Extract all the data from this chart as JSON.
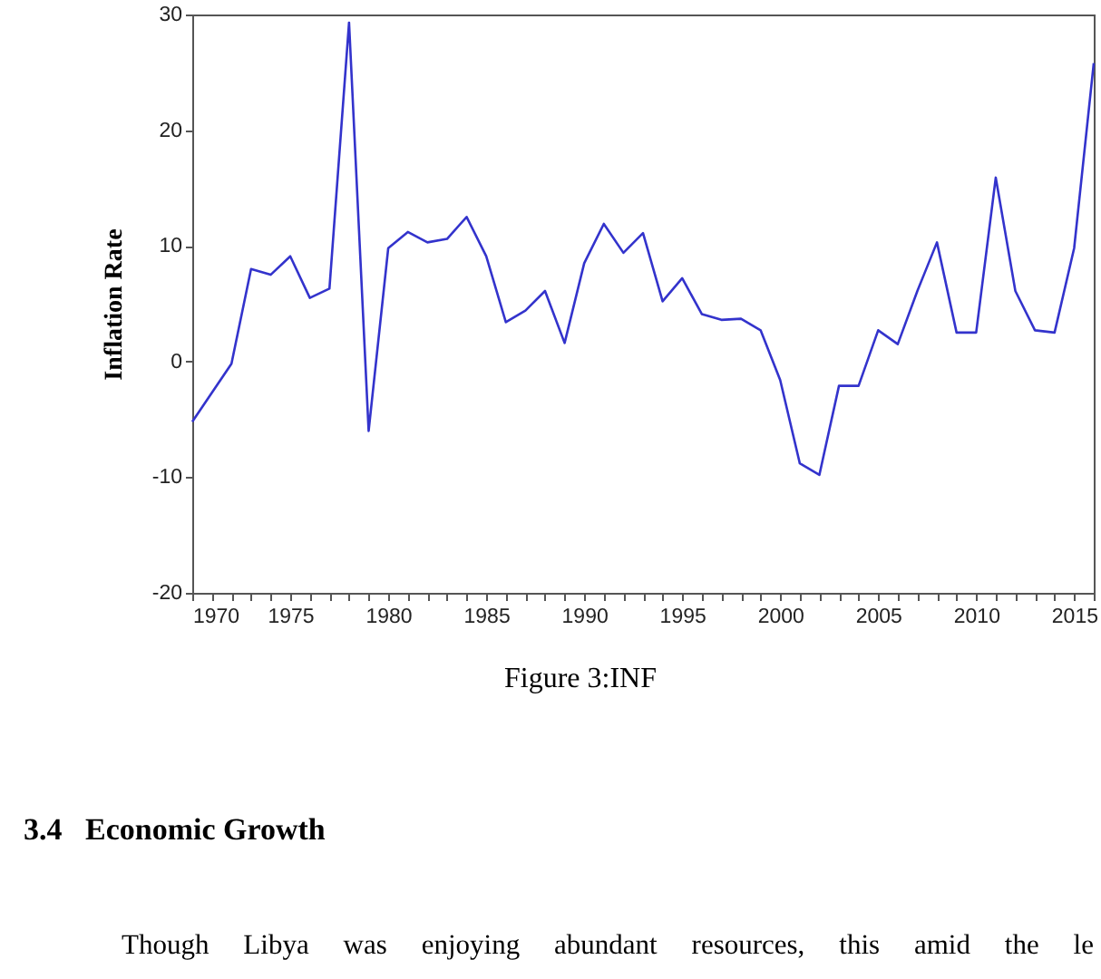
{
  "chart_data": {
    "type": "line",
    "ylabel": "Inflation Rate",
    "x": [
      1970,
      1971,
      1972,
      1973,
      1974,
      1975,
      1976,
      1977,
      1978,
      1979,
      1980,
      1981,
      1982,
      1983,
      1984,
      1985,
      1986,
      1987,
      1988,
      1989,
      1990,
      1991,
      1992,
      1993,
      1994,
      1995,
      1996,
      1997,
      1998,
      1999,
      2000,
      2001,
      2002,
      2003,
      2004,
      2005,
      2006,
      2007,
      2008,
      2009,
      2010,
      2011,
      2012,
      2013,
      2014,
      2015,
      2016
    ],
    "series": [
      {
        "color": "#3333cc",
        "values": [
          -5.2,
          -2.7,
          -0.2,
          8.0,
          7.5,
          9.1,
          5.5,
          6.3,
          29.3,
          -6.0,
          9.8,
          11.2,
          10.3,
          10.6,
          12.5,
          9.1,
          3.4,
          4.4,
          6.1,
          1.6,
          8.5,
          11.9,
          9.4,
          11.1,
          5.2,
          7.2,
          4.1,
          3.6,
          3.7,
          2.7,
          -1.6,
          -8.8,
          -9.8,
          -2.1,
          -2.1,
          2.7,
          1.5,
          6.1,
          10.3,
          2.5,
          2.5,
          15.9,
          6.1,
          2.7,
          2.5,
          9.8,
          25.8
        ]
      }
    ],
    "xlim": [
      1970,
      2016
    ],
    "xticks": [
      1970,
      {
        "value": 1971,
        "label": null
      },
      {
        "value": 1972,
        "label": null
      },
      {
        "value": 1973,
        "label": null
      },
      {
        "value": 1974,
        "label": null
      },
      1975,
      {
        "value": 1976,
        "label": null
      },
      {
        "value": 1977,
        "label": null
      },
      {
        "value": 1978,
        "label": null
      },
      {
        "value": 1979,
        "label": null
      },
      1980,
      {
        "value": 1981,
        "label": null
      },
      {
        "value": 1982,
        "label": null
      },
      {
        "value": 1983,
        "label": null
      },
      {
        "value": 1984,
        "label": null
      },
      1985,
      {
        "value": 1986,
        "label": null
      },
      {
        "value": 1987,
        "label": null
      },
      {
        "value": 1988,
        "label": null
      },
      {
        "value": 1989,
        "label": null
      },
      1990,
      {
        "value": 1991,
        "label": null
      },
      {
        "value": 1992,
        "label": null
      },
      {
        "value": 1993,
        "label": null
      },
      {
        "value": 1994,
        "label": null
      },
      1995,
      {
        "value": 1996,
        "label": null
      },
      {
        "value": 1997,
        "label": null
      },
      {
        "value": 1998,
        "label": null
      },
      {
        "value": 1999,
        "label": null
      },
      2000,
      {
        "value": 2001,
        "label": null
      },
      {
        "value": 2002,
        "label": null
      },
      {
        "value": 2003,
        "label": null
      },
      {
        "value": 2004,
        "label": null
      },
      2005,
      {
        "value": 2006,
        "label": null
      },
      {
        "value": 2007,
        "label": null
      },
      {
        "value": 2008,
        "label": null
      },
      {
        "value": 2009,
        "label": null
      },
      2010,
      {
        "value": 2011,
        "label": null
      },
      {
        "value": 2012,
        "label": null
      },
      {
        "value": 2013,
        "label": null
      },
      {
        "value": 2014,
        "label": null
      },
      2015,
      {
        "value": 2016,
        "label": null
      }
    ],
    "ylim": [
      -20,
      30
    ],
    "yticks": [
      -20,
      -10,
      0,
      10,
      20,
      30
    ],
    "grid": false,
    "annotations": [
      "Figure 3:INF",
      "3.4   Economic Growth",
      "Though Libya was enjoying abundant resources, this amid the le"
    ]
  }
}
